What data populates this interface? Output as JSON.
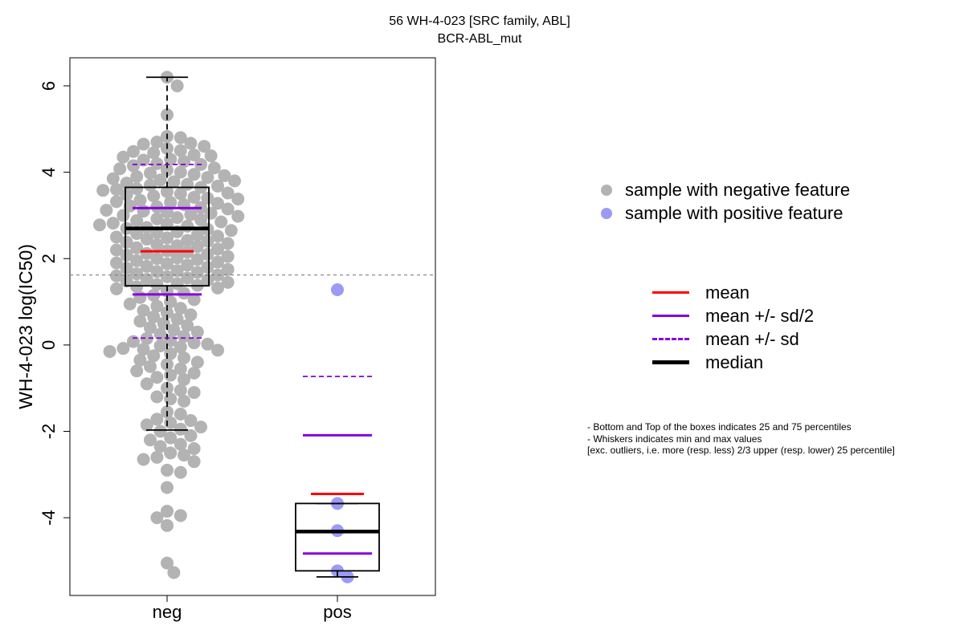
{
  "chart_data": {
    "type": "box",
    "title": "56 WH-4-023 [SRC family, ABL]",
    "subtitle": "BCR-ABL_mut",
    "ylabel": "WH-4-023 log(IC50)",
    "xlabel": "",
    "categories": [
      "neg",
      "pos"
    ],
    "ylim": [
      -5.8,
      6.65
    ],
    "yticks": [
      -4,
      -2,
      0,
      2,
      4,
      6
    ],
    "threshold": 1.62,
    "colors": {
      "neg_points": "#b3b3b3",
      "pos_points": "#9b9bf5",
      "mean": "#ff0000",
      "sd": "#8800dd",
      "median": "#000000",
      "threshold": "#808080"
    },
    "groups": [
      {
        "name": "neg",
        "min": -1.97,
        "q1": 1.37,
        "median": 2.7,
        "q3": 3.65,
        "max": 6.2,
        "mean": 2.17,
        "mean_plus_half_sd": 3.17,
        "mean_minus_half_sd": 1.17,
        "mean_plus_sd": 4.18,
        "mean_minus_sd": 0.16,
        "points": [
          6.2,
          6.0,
          5.33,
          4.83,
          4.8,
          4.7,
          4.67,
          4.65,
          4.6,
          4.55,
          4.5,
          4.48,
          4.45,
          4.4,
          4.38,
          4.35,
          4.3,
          4.28,
          4.25,
          4.2,
          4.18,
          4.15,
          4.1,
          4.08,
          4.05,
          4.0,
          3.98,
          3.95,
          3.92,
          3.9,
          3.88,
          3.85,
          3.82,
          3.8,
          3.78,
          3.75,
          3.72,
          3.7,
          3.68,
          3.65,
          3.62,
          3.6,
          3.58,
          3.55,
          3.52,
          3.5,
          3.48,
          3.45,
          3.42,
          3.4,
          3.38,
          3.35,
          3.32,
          3.3,
          3.28,
          3.25,
          3.22,
          3.2,
          3.18,
          3.15,
          3.12,
          3.1,
          3.08,
          3.05,
          3.02,
          3.0,
          2.98,
          2.95,
          2.92,
          2.9,
          2.88,
          2.85,
          2.82,
          2.8,
          2.78,
          2.75,
          2.72,
          2.7,
          2.68,
          2.65,
          2.62,
          2.6,
          2.58,
          2.55,
          2.52,
          2.5,
          2.48,
          2.45,
          2.42,
          2.4,
          2.38,
          2.35,
          2.32,
          2.3,
          2.28,
          2.25,
          2.22,
          2.2,
          2.18,
          2.15,
          2.12,
          2.1,
          2.08,
          2.05,
          2.02,
          2.0,
          1.98,
          1.95,
          1.92,
          1.9,
          1.88,
          1.85,
          1.82,
          1.8,
          1.78,
          1.75,
          1.72,
          1.7,
          1.68,
          1.65,
          1.62,
          1.6,
          1.58,
          1.55,
          1.52,
          1.5,
          1.48,
          1.45,
          1.42,
          1.4,
          1.38,
          1.35,
          1.32,
          1.3,
          1.25,
          1.2,
          1.15,
          1.1,
          1.05,
          1.0,
          0.95,
          0.9,
          0.85,
          0.8,
          0.75,
          0.7,
          0.65,
          0.6,
          0.55,
          0.5,
          0.45,
          0.4,
          0.35,
          0.3,
          0.25,
          0.2,
          0.15,
          0.1,
          0.08,
          0.05,
          0.02,
          -0.02,
          -0.05,
          -0.08,
          -0.1,
          -0.12,
          -0.15,
          -0.2,
          -0.25,
          -0.3,
          -0.35,
          -0.4,
          -0.45,
          -0.5,
          -0.55,
          -0.6,
          -0.65,
          -0.7,
          -0.75,
          -0.8,
          -0.9,
          -1.0,
          -1.05,
          -1.1,
          -1.2,
          -1.25,
          -1.3,
          -1.55,
          -1.6,
          -1.72,
          -1.75,
          -1.8,
          -1.85,
          -1.9,
          -1.95,
          -2.0,
          -2.1,
          -2.15,
          -2.2,
          -2.3,
          -2.35,
          -2.4,
          -2.5,
          -2.55,
          -2.6,
          -2.65,
          -2.7,
          -2.9,
          -2.95,
          -3.3,
          -3.85,
          -3.95,
          -4.0,
          -4.18,
          -5.05,
          -5.27
        ]
      },
      {
        "name": "pos",
        "min": -5.37,
        "q1": -5.23,
        "median": -4.32,
        "q3": -3.67,
        "max": -3.67,
        "mean": -3.45,
        "mean_plus_half_sd": -2.09,
        "mean_minus_half_sd": -4.83,
        "mean_plus_sd": -0.73,
        "mean_minus_sd": null,
        "points": [
          1.28,
          -3.67,
          -4.3,
          -5.23,
          -5.37
        ]
      }
    ]
  },
  "legend_points": [
    {
      "label": "sample with negative feature",
      "color": "#b3b3b3"
    },
    {
      "label": "sample with positive feature",
      "color": "#9b9bf5"
    }
  ],
  "legend_lines": [
    {
      "label": "mean",
      "color": "#ff0000",
      "style": "solid"
    },
    {
      "label": "mean +/- sd/2",
      "color": "#8800dd",
      "style": "solid"
    },
    {
      "label": "mean +/- sd",
      "color": "#8800dd",
      "style": "dashed"
    },
    {
      "label": "median",
      "color": "#000000",
      "style": "thick"
    }
  ],
  "notes": [
    "- Bottom and Top of the boxes indicates 25 and 75 percentiles",
    "- Whiskers indicates min and max values",
    "[exc. outliers, i.e. more (resp. less) 2/3 upper (resp. lower) 25 percentile]"
  ]
}
